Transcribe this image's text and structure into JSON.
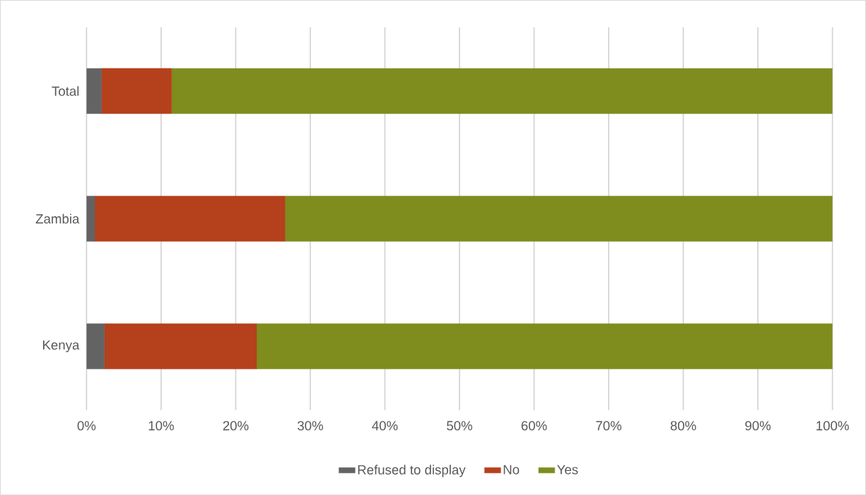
{
  "chart_data": {
    "type": "bar",
    "orientation": "horizontal",
    "stacked": true,
    "categories": [
      "Total",
      "Zambia",
      "Kenya"
    ],
    "series": [
      {
        "name": "Refused to display",
        "color": "#636363",
        "values": [
          2.0,
          1.1,
          2.4
        ]
      },
      {
        "name": "No",
        "color": "#b5401c",
        "values": [
          9.4,
          25.5,
          20.4
        ]
      },
      {
        "name": "Yes",
        "color": "#7f8c1e",
        "values": [
          88.6,
          73.4,
          77.2
        ]
      }
    ],
    "xlim": [
      0,
      100
    ],
    "xticks": [
      {
        "value": 0,
        "label": "0%"
      },
      {
        "value": 10,
        "label": "10%"
      },
      {
        "value": 20,
        "label": "20%"
      },
      {
        "value": 30,
        "label": "30%"
      },
      {
        "value": 40,
        "label": "40%"
      },
      {
        "value": 50,
        "label": "50%"
      },
      {
        "value": 60,
        "label": "60%"
      },
      {
        "value": 70,
        "label": "70%"
      },
      {
        "value": 80,
        "label": "80%"
      },
      {
        "value": 90,
        "label": "90%"
      },
      {
        "value": 100,
        "label": "100%"
      }
    ],
    "grid": "x",
    "legend": "bottom"
  }
}
